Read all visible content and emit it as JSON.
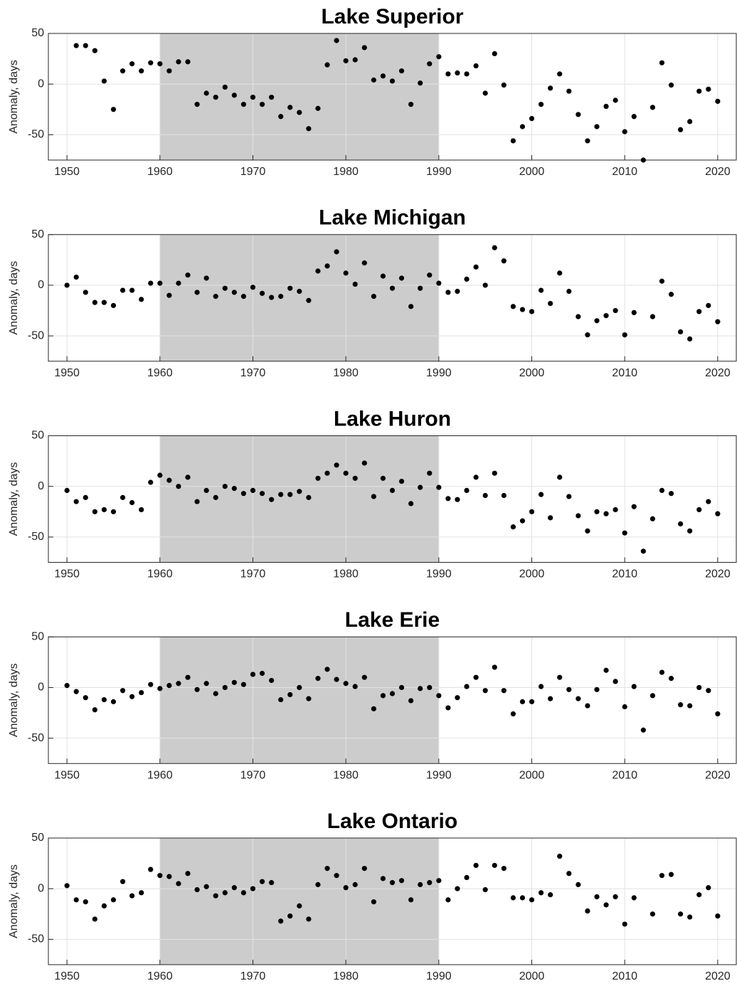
{
  "chart_data": [
    {
      "type": "scatter",
      "title": "Lake Superior",
      "y_label": "Anomaly, days",
      "color": "#000000",
      "shade": [
        1960,
        1990
      ],
      "shade_color": "#cccccc",
      "grid": true,
      "xlim": [
        1948,
        2022
      ],
      "ylim": [
        -75,
        50
      ],
      "xticks": [
        1950,
        1960,
        1970,
        1980,
        1990,
        2000,
        2010,
        2020
      ],
      "yticks": [
        -50,
        0,
        50
      ],
      "x": [
        1951,
        1952,
        1953,
        1954,
        1955,
        1956,
        1957,
        1958,
        1959,
        1960,
        1961,
        1962,
        1963,
        1964,
        1965,
        1966,
        1967,
        1968,
        1969,
        1970,
        1971,
        1972,
        1973,
        1974,
        1975,
        1976,
        1977,
        1978,
        1979,
        1980,
        1981,
        1982,
        1983,
        1984,
        1985,
        1986,
        1987,
        1988,
        1989,
        1990,
        1991,
        1992,
        1993,
        1994,
        1995,
        1996,
        1997,
        1998,
        1999,
        2000,
        2001,
        2002,
        2003,
        2004,
        2005,
        2006,
        2007,
        2008,
        2009,
        2010,
        2011,
        2012,
        2013,
        2014,
        2015,
        2016,
        2017,
        2018,
        2019,
        2020
      ],
      "values": [
        38,
        38,
        33,
        3,
        -25,
        13,
        20,
        13,
        21,
        20,
        13,
        22,
        22,
        -20,
        -9,
        -13,
        -3,
        -11,
        -20,
        -13,
        -20,
        -13,
        -32,
        -23,
        -28,
        -44,
        -24,
        19,
        43,
        23,
        24,
        36,
        4,
        8,
        3,
        13,
        -20,
        1,
        20,
        27,
        10,
        11,
        10,
        18,
        -9,
        30,
        -1,
        -56,
        -42,
        -34,
        -20,
        -4,
        10,
        -7,
        -30,
        -56,
        -42,
        -22,
        -16,
        -47,
        -32,
        -75,
        -23,
        21,
        -1,
        -45,
        -37,
        -7,
        -5,
        -17
      ]
    },
    {
      "type": "scatter",
      "title": "Lake Michigan",
      "y_label": "Anomaly, days",
      "color": "#000000",
      "shade": [
        1960,
        1990
      ],
      "shade_color": "#cccccc",
      "grid": true,
      "xlim": [
        1948,
        2022
      ],
      "ylim": [
        -75,
        50
      ],
      "xticks": [
        1950,
        1960,
        1970,
        1980,
        1990,
        2000,
        2010,
        2020
      ],
      "yticks": [
        -50,
        0,
        50
      ],
      "x": [
        1950,
        1951,
        1952,
        1953,
        1954,
        1955,
        1956,
        1957,
        1958,
        1959,
        1960,
        1961,
        1962,
        1963,
        1964,
        1965,
        1966,
        1967,
        1968,
        1969,
        1970,
        1971,
        1972,
        1973,
        1974,
        1975,
        1976,
        1977,
        1978,
        1979,
        1980,
        1981,
        1982,
        1983,
        1984,
        1985,
        1986,
        1987,
        1988,
        1989,
        1990,
        1991,
        1992,
        1993,
        1994,
        1995,
        1996,
        1997,
        1998,
        1999,
        2000,
        2001,
        2002,
        2003,
        2004,
        2005,
        2006,
        2007,
        2008,
        2009,
        2010,
        2011,
        2013,
        2014,
        2015,
        2016,
        2017,
        2018,
        2019,
        2020
      ],
      "values": [
        0,
        8,
        -7,
        -17,
        -17,
        -20,
        -5,
        -5,
        -14,
        2,
        2,
        -10,
        2,
        10,
        -7,
        7,
        -11,
        -3,
        -7,
        -11,
        -2,
        -8,
        -12,
        -11,
        -3,
        -6,
        -15,
        14,
        19,
        33,
        12,
        1,
        22,
        -11,
        9,
        -3,
        7,
        -21,
        -3,
        10,
        2,
        -7,
        -6,
        6,
        18,
        0,
        37,
        24,
        -21,
        -24,
        -26,
        -5,
        -18,
        12,
        -6,
        -31,
        -49,
        -35,
        -30,
        -25,
        -49,
        -27,
        -31,
        4,
        -9,
        -46,
        -53,
        -26,
        -20,
        -36
      ]
    },
    {
      "type": "scatter",
      "title": "Lake Huron",
      "y_label": "Anomaly, days",
      "color": "#000000",
      "shade": [
        1960,
        1990
      ],
      "shade_color": "#cccccc",
      "grid": true,
      "xlim": [
        1948,
        2022
      ],
      "ylim": [
        -75,
        50
      ],
      "xticks": [
        1950,
        1960,
        1970,
        1980,
        1990,
        2000,
        2010,
        2020
      ],
      "yticks": [
        -50,
        0,
        50
      ],
      "x": [
        1950,
        1951,
        1952,
        1953,
        1954,
        1955,
        1956,
        1957,
        1958,
        1959,
        1960,
        1961,
        1962,
        1963,
        1964,
        1965,
        1966,
        1967,
        1968,
        1969,
        1970,
        1971,
        1972,
        1973,
        1974,
        1975,
        1976,
        1977,
        1978,
        1979,
        1980,
        1981,
        1982,
        1983,
        1984,
        1985,
        1986,
        1987,
        1988,
        1989,
        1990,
        1991,
        1992,
        1993,
        1994,
        1995,
        1996,
        1997,
        1998,
        1999,
        2000,
        2001,
        2002,
        2003,
        2004,
        2005,
        2006,
        2007,
        2008,
        2009,
        2010,
        2011,
        2012,
        2013,
        2014,
        2015,
        2016,
        2017,
        2018,
        2019,
        2020
      ],
      "values": [
        -4,
        -15,
        -11,
        -25,
        -23,
        -25,
        -11,
        -16,
        -23,
        4,
        11,
        6,
        0,
        9,
        -15,
        -4,
        -11,
        0,
        -2,
        -7,
        -4,
        -7,
        -13,
        -8,
        -8,
        -5,
        -11,
        8,
        13,
        21,
        13,
        8,
        23,
        -10,
        8,
        -4,
        5,
        -17,
        -1,
        13,
        -1,
        -12,
        -13,
        -4,
        9,
        -9,
        13,
        -9,
        -40,
        -34,
        -25,
        -8,
        -31,
        9,
        -10,
        -29,
        -44,
        -25,
        -27,
        -23,
        -46,
        -20,
        -64,
        -32,
        -4,
        -7,
        -37,
        -44,
        -23,
        -15,
        -27
      ]
    },
    {
      "type": "scatter",
      "title": "Lake Erie",
      "y_label": "Anomaly, days",
      "color": "#000000",
      "shade": [
        1960,
        1990
      ],
      "shade_color": "#cccccc",
      "grid": true,
      "xlim": [
        1948,
        2022
      ],
      "ylim": [
        -75,
        50
      ],
      "xticks": [
        1950,
        1960,
        1970,
        1980,
        1990,
        2000,
        2010,
        2020
      ],
      "yticks": [
        -50,
        0,
        50
      ],
      "x": [
        1950,
        1951,
        1952,
        1953,
        1954,
        1955,
        1956,
        1957,
        1958,
        1959,
        1960,
        1961,
        1962,
        1963,
        1964,
        1965,
        1966,
        1967,
        1968,
        1969,
        1970,
        1971,
        1972,
        1973,
        1974,
        1975,
        1976,
        1977,
        1978,
        1979,
        1980,
        1981,
        1982,
        1983,
        1984,
        1985,
        1986,
        1987,
        1988,
        1989,
        1990,
        1991,
        1992,
        1993,
        1994,
        1995,
        1996,
        1997,
        1998,
        1999,
        2000,
        2001,
        2002,
        2003,
        2004,
        2005,
        2006,
        2007,
        2008,
        2009,
        2010,
        2011,
        2012,
        2013,
        2014,
        2015,
        2016,
        2017,
        2018,
        2019,
        2020
      ],
      "values": [
        2,
        -4,
        -10,
        -22,
        -12,
        -14,
        -3,
        -9,
        -5,
        3,
        -1,
        2,
        4,
        10,
        -2,
        4,
        -6,
        0,
        5,
        3,
        13,
        14,
        7,
        -12,
        -7,
        0,
        -11,
        9,
        18,
        8,
        4,
        1,
        10,
        -21,
        -8,
        -6,
        0,
        -13,
        -1,
        0,
        -8,
        -20,
        -10,
        1,
        10,
        -3,
        20,
        -3,
        -26,
        -14,
        -14,
        1,
        -11,
        10,
        -2,
        -11,
        -18,
        -2,
        17,
        6,
        -19,
        1,
        -42,
        -8,
        15,
        9,
        -17,
        -18,
        0,
        -3,
        -26
      ]
    },
    {
      "type": "scatter",
      "title": "Lake Ontario",
      "y_label": "Anomaly, days",
      "color": "#000000",
      "shade": [
        1960,
        1990
      ],
      "shade_color": "#cccccc",
      "grid": true,
      "xlim": [
        1948,
        2022
      ],
      "ylim": [
        -75,
        50
      ],
      "xticks": [
        1950,
        1960,
        1970,
        1980,
        1990,
        2000,
        2010,
        2020
      ],
      "yticks": [
        -50,
        0,
        50
      ],
      "x": [
        1950,
        1951,
        1952,
        1953,
        1954,
        1955,
        1956,
        1957,
        1958,
        1959,
        1960,
        1961,
        1962,
        1963,
        1964,
        1965,
        1966,
        1967,
        1968,
        1969,
        1970,
        1971,
        1972,
        1973,
        1974,
        1975,
        1976,
        1977,
        1978,
        1979,
        1980,
        1981,
        1982,
        1983,
        1984,
        1985,
        1986,
        1987,
        1988,
        1989,
        1990,
        1991,
        1992,
        1993,
        1994,
        1995,
        1996,
        1997,
        1998,
        1999,
        2000,
        2001,
        2002,
        2003,
        2004,
        2005,
        2006,
        2007,
        2008,
        2009,
        2010,
        2011,
        2013,
        2014,
        2015,
        2016,
        2017,
        2018,
        2019,
        2020
      ],
      "values": [
        3,
        -11,
        -13,
        -30,
        -17,
        -11,
        7,
        -7,
        -4,
        19,
        13,
        12,
        5,
        15,
        -1,
        2,
        -7,
        -4,
        1,
        -4,
        0,
        7,
        6,
        -32,
        -27,
        -17,
        -30,
        4,
        20,
        13,
        1,
        4,
        20,
        -13,
        10,
        6,
        8,
        -11,
        4,
        6,
        8,
        -11,
        0,
        11,
        23,
        -1,
        23,
        20,
        -9,
        -9,
        -11,
        -4,
        -6,
        32,
        15,
        4,
        -22,
        -8,
        -16,
        -8,
        -35,
        -9,
        -25,
        13,
        14,
        -25,
        -28,
        -6,
        1,
        -27
      ]
    }
  ]
}
